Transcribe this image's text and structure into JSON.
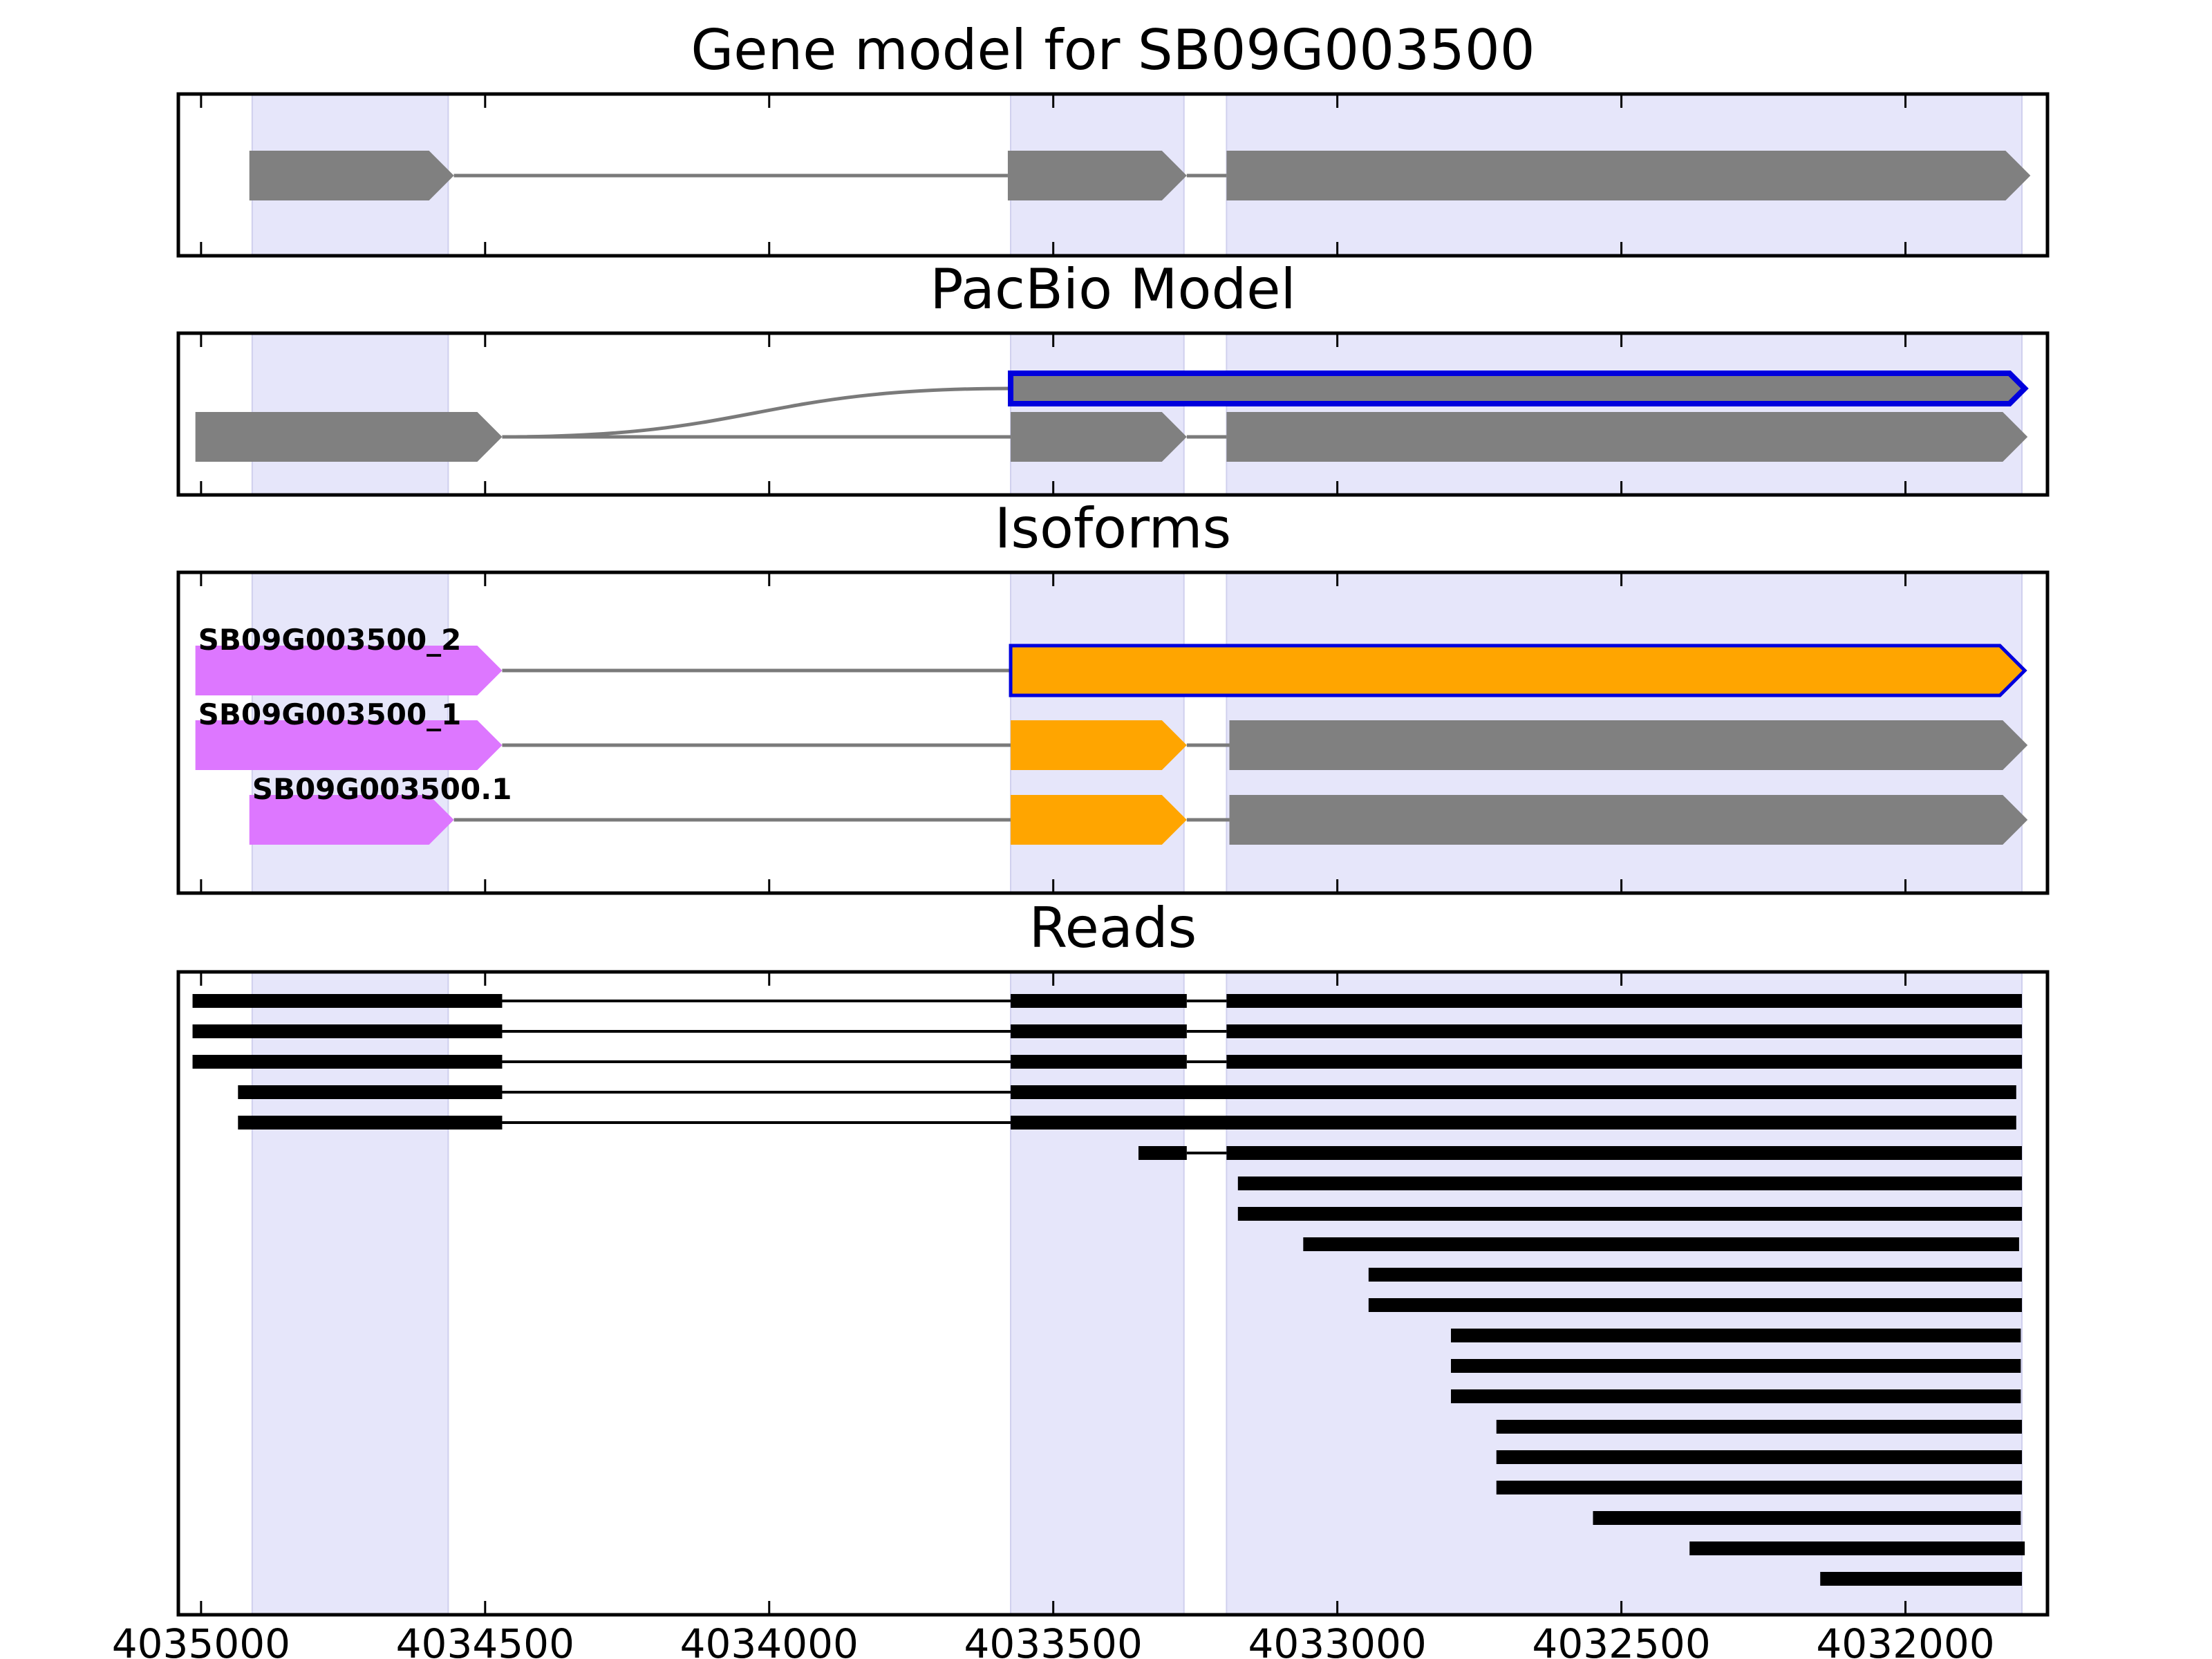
{
  "chart_data": {
    "type": "gene-track",
    "x_axis": {
      "reversed": true,
      "range": [
        4035040,
        4031750
      ],
      "ticks": [
        4035000,
        4034500,
        4034000,
        4033500,
        4033000,
        4032500,
        4032000
      ],
      "tick_labels": [
        "4035000",
        "4034500",
        "4034000",
        "4033500",
        "4033000",
        "4032500",
        "4032000"
      ]
    },
    "exon_highlight_regions": [
      [
        4034910,
        4034565
      ],
      [
        4033575,
        4033270
      ],
      [
        4033195,
        4031795
      ]
    ],
    "colors": {
      "exon_default": "#808080",
      "intron": "#7a7a7a",
      "highlight": "#e6e6fa",
      "selected_outline": "#0000dd",
      "utr5": "#dd77ff",
      "cds_alt": "#ffa500",
      "read": "#000000"
    },
    "panels": [
      {
        "id": "gene-model",
        "title": "Gene model for SB09G003500",
        "rows": 1,
        "models": [
          {
            "row": 0,
            "name": "",
            "exons": [
              [
                4034915,
                4034555,
                "default"
              ],
              [
                4033580,
                4033265,
                "default"
              ],
              [
                4033195,
                4031780,
                "default"
              ]
            ]
          }
        ]
      },
      {
        "id": "pacbio-model",
        "title": "PacBio Model",
        "rows": 2,
        "models": [
          {
            "row": 0,
            "name": "",
            "outline": true,
            "exons": [
              [
                4033575,
                4031790,
                "default"
              ]
            ]
          },
          {
            "row": 1,
            "name": "",
            "exons": [
              [
                4035010,
                4034470,
                "default"
              ],
              [
                4033575,
                4033265,
                "default"
              ],
              [
                4033195,
                4031785,
                "default"
              ]
            ]
          }
        ],
        "connector": {
          "from_row": 1,
          "to_row": 0,
          "start": 4034470,
          "end": 4033575
        }
      },
      {
        "id": "isoforms",
        "title": "Isoforms",
        "rows": 3,
        "models": [
          {
            "row": 0,
            "name": "SB09G003500_2",
            "exons": [
              [
                4035010,
                4034470,
                "utr5"
              ],
              [
                4033575,
                4031790,
                "cds_alt",
                "outline"
              ]
            ]
          },
          {
            "row": 1,
            "name": "SB09G003500_1",
            "exons": [
              [
                4035010,
                4034470,
                "utr5"
              ],
              [
                4033575,
                4033265,
                "cds_alt"
              ],
              [
                4033190,
                4031785,
                "default"
              ]
            ]
          },
          {
            "row": 2,
            "name": "SB09G003500.1",
            "exons": [
              [
                4034915,
                4034555,
                "utr5"
              ],
              [
                4033575,
                4033265,
                "cds_alt"
              ],
              [
                4033190,
                4031785,
                "default"
              ]
            ]
          }
        ]
      },
      {
        "id": "reads",
        "title": "Reads",
        "reads": [
          [
            [
              4035015,
              4034470
            ],
            [
              4033575,
              4033265
            ],
            [
              4033195,
              4031795
            ]
          ],
          [
            [
              4035015,
              4034470
            ],
            [
              4033575,
              4033265
            ],
            [
              4033195,
              4031795
            ]
          ],
          [
            [
              4035015,
              4034470
            ],
            [
              4033575,
              4033265
            ],
            [
              4033195,
              4031795
            ]
          ],
          [
            [
              4034935,
              4034470
            ],
            [
              4033575,
              4031805
            ]
          ],
          [
            [
              4034935,
              4034470
            ],
            [
              4033575,
              4031805
            ]
          ],
          [
            [
              4033350,
              4033265
            ],
            [
              4033195,
              4031795
            ]
          ],
          [
            [
              4033175,
              4031795
            ]
          ],
          [
            [
              4033175,
              4031795
            ]
          ],
          [
            [
              4033060,
              4031800
            ]
          ],
          [
            [
              4032945,
              4031795
            ]
          ],
          [
            [
              4032945,
              4031795
            ]
          ],
          [
            [
              4032800,
              4031797
            ]
          ],
          [
            [
              4032800,
              4031797
            ]
          ],
          [
            [
              4032800,
              4031797
            ]
          ],
          [
            [
              4032720,
              4031795
            ]
          ],
          [
            [
              4032720,
              4031795
            ]
          ],
          [
            [
              4032720,
              4031795
            ]
          ],
          [
            [
              4032550,
              4031797
            ]
          ],
          [
            [
              4032380,
              4031790
            ]
          ],
          [
            [
              4032150,
              4031795
            ]
          ]
        ]
      }
    ]
  }
}
